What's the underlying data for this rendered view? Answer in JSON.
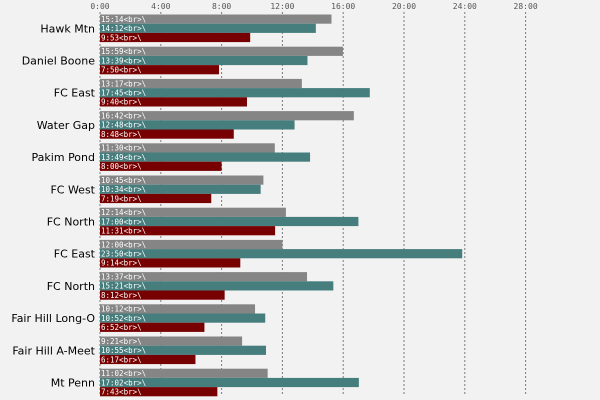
{
  "chart_data": {
    "type": "bar",
    "orientation": "horizontal",
    "x_unit": "minutes",
    "xlim": [
      0,
      28
    ],
    "x_ticks": [
      "0:00",
      "4:00",
      "8:00",
      "12:00",
      "16:00",
      "20:00",
      "24:00",
      "28:00"
    ],
    "x_tick_values": [
      0,
      4,
      8,
      12,
      16,
      20,
      24,
      28
    ],
    "grid": true,
    "legend": "none",
    "categories": [
      "Hawk Mtn",
      "Daniel Boone",
      "FC East",
      "Water Gap",
      "Pakim Pond",
      "FC West",
      "FC North",
      "FC East",
      "FC North",
      "Fair Hill Long-O",
      "Fair Hill A-Meet",
      "Mt Penn"
    ],
    "series": [
      {
        "color": "#858585",
        "labels": [
          "15:14<br>\\",
          "15:59<br>\\",
          "13:17<br>\\",
          "16:42<br>\\",
          "11:30<br>\\",
          "10:45<br>\\",
          "12:14<br>\\",
          "12:00<br>\\",
          "13:37<br>\\",
          "10:12<br>\\",
          "9:21<br>\\",
          "11:02<br>\\"
        ],
        "values": [
          15.23,
          15.98,
          13.28,
          16.7,
          11.5,
          10.75,
          12.23,
          12.0,
          13.62,
          10.2,
          9.35,
          11.03
        ]
      },
      {
        "color": "#467d7d",
        "labels": [
          "14:12<br>\\",
          "13:39<br>\\",
          "17:45<br>\\",
          "12:48<br>\\",
          "13:49<br>\\",
          "10:34<br>\\",
          "17:00<br>\\",
          "23:50<br>\\",
          "15:21<br>\\",
          "10:52<br>\\",
          "10:55<br>\\",
          "17:02<br>\\"
        ],
        "values": [
          14.2,
          13.65,
          17.75,
          12.8,
          13.82,
          10.57,
          17.0,
          23.83,
          15.35,
          10.87,
          10.92,
          17.03
        ]
      },
      {
        "color": "#770000",
        "labels": [
          "9:53<br>\\",
          "7:50<br>\\",
          "9:40<br>\\",
          "8:48<br>\\",
          "8:00<br>\\",
          "7:19<br>\\",
          "11:31<br>\\",
          "9:14<br>\\",
          "8:12<br>\\",
          "6:52<br>\\",
          "6:17<br>\\",
          "7:43<br>\\"
        ],
        "values": [
          9.88,
          7.83,
          9.67,
          8.8,
          8.0,
          7.32,
          11.52,
          9.23,
          8.2,
          6.87,
          6.28,
          7.72
        ]
      }
    ]
  }
}
